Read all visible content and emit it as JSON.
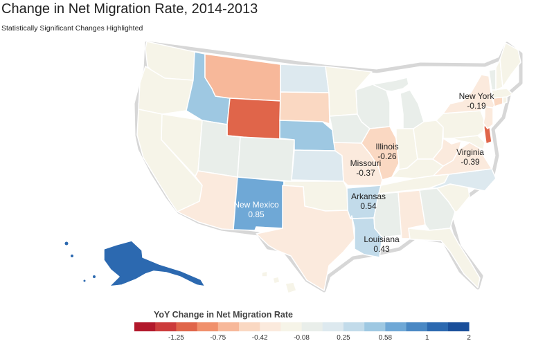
{
  "title": "Change in Net Migration Rate, 2014-2013",
  "subtitle": "Statistically Significant Changes Highlighted",
  "legend": {
    "title": "YoY Change in Net Migration Rate",
    "colors": [
      "#b2182b",
      "#cc3b3b",
      "#e0654a",
      "#f0906c",
      "#f7b89a",
      "#fad8c2",
      "#fbeadd",
      "#f6f4e8",
      "#e9eeea",
      "#dde9ef",
      "#c2dbea",
      "#9ec8e2",
      "#6fa8d6",
      "#4a88c4",
      "#2c69b0",
      "#1a4f9a"
    ],
    "tick_labels": [
      "-1.25",
      "-0.75",
      "-0.42",
      "-0.08",
      "0.25",
      "0.58",
      "1",
      "2"
    ]
  },
  "state_colors": {
    "WA": "#f6f4e8",
    "OR": "#f6f4e8",
    "CA": "#f6f4e8",
    "NV": "#f6f4e8",
    "ID": "#9ec8e2",
    "MT": "#f7b89a",
    "WY": "#e0654a",
    "UT": "#e9eeea",
    "AZ": "#fbeadd",
    "CO": "#e9eeea",
    "NM": "#6fa8d6",
    "ND": "#dde9ef",
    "SD": "#fad8c2",
    "NE": "#9ec8e2",
    "KS": "#dde9ef",
    "OK": "#f6f4e8",
    "TX": "#fbeadd",
    "MN": "#f6f4e8",
    "IA": "#e9eeea",
    "MO": "#fbeadd",
    "AR": "#c2dbea",
    "LA": "#c2dbea",
    "WI": "#e9eeea",
    "IL": "#fad8c2",
    "MI": "#e9eeea",
    "IN": "#f6f4e8",
    "OH": "#f6f4e8",
    "KY": "#f6f4e8",
    "TN": "#f6f4e8",
    "MS": "#e9eeea",
    "AL": "#fbeadd",
    "GA": "#e9eeea",
    "FL": "#f6f4e8",
    "SC": "#f6f4e8",
    "NC": "#dde9ef",
    "VA": "#fbeadd",
    "WV": "#fbeadd",
    "MD": "#f6f4e8",
    "DE": "#e0654a",
    "PA": "#f6f4e8",
    "NJ": "#fbeadd",
    "NY": "#fbeadd",
    "CT": "#fad8c2",
    "RI": "#f6f4e8",
    "MA": "#f6f4e8",
    "VT": "#e9eeea",
    "NH": "#f6f4e8",
    "ME": "#f6f4e8",
    "AK": "#2c69b0",
    "HI": "#f6f4e8"
  },
  "labels": {
    "new_mexico": {
      "name": "New Mexico",
      "value": "0.85"
    },
    "arkansas": {
      "name": "Arkansas",
      "value": "0.54"
    },
    "louisiana": {
      "name": "Louisiana",
      "value": "0.43"
    },
    "missouri": {
      "name": "Missouri",
      "value": "-0.37"
    },
    "illinois": {
      "name": "Illinois",
      "value": "-0.26"
    },
    "virginia": {
      "name": "Virginia",
      "value": "-0.39"
    },
    "new_york": {
      "name": "New York",
      "value": "-0.19"
    }
  }
}
